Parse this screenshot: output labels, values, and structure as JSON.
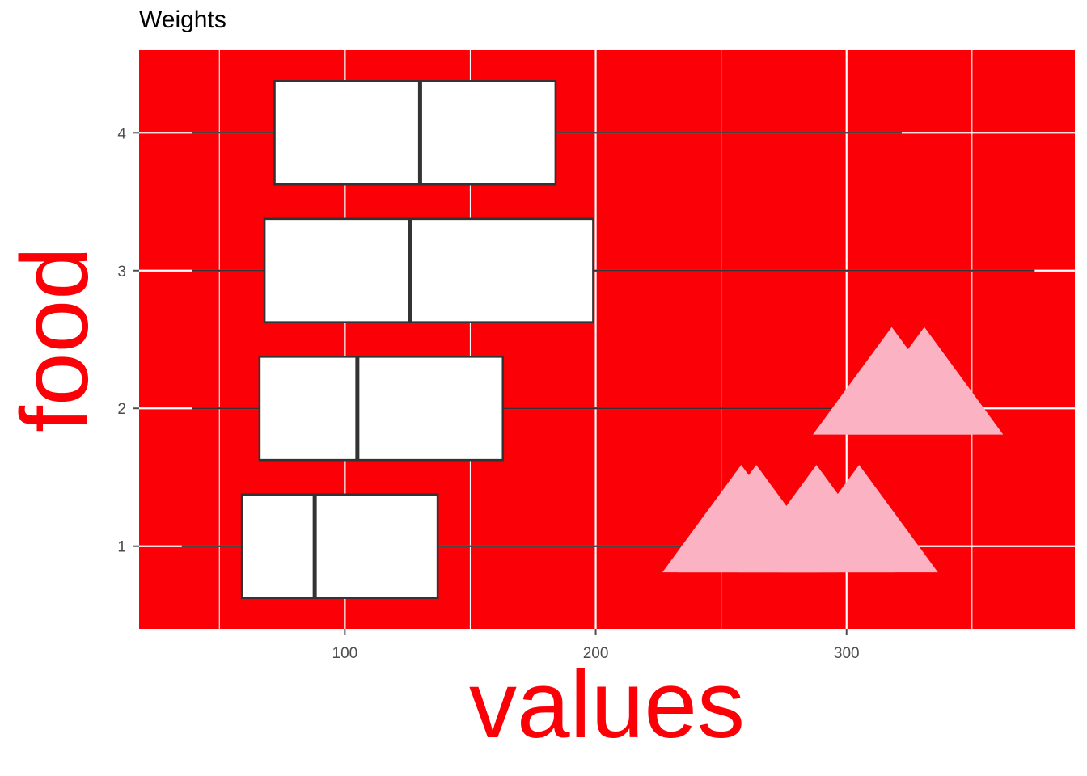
{
  "chart_data": {
    "type": "boxplot",
    "orientation": "horizontal",
    "title": "Weights",
    "xlabel": "values",
    "ylabel": "food",
    "xlim": [
      18,
      391
    ],
    "ylim": [
      0.4,
      4.6
    ],
    "x_ticks": [
      100,
      200,
      300
    ],
    "x_minor_ticks": [
      50,
      150,
      250,
      350
    ],
    "y_ticks": [
      1,
      2,
      3,
      4
    ],
    "categories": [
      "1",
      "2",
      "3",
      "4"
    ],
    "boxes": [
      {
        "category": "1",
        "whisker_low": 35,
        "q1": 59,
        "median": 88,
        "q3": 137,
        "whisker_high": 250
      },
      {
        "category": "2",
        "whisker_low": 39,
        "q1": 66,
        "median": 105,
        "q3": 163,
        "whisker_high": 309
      },
      {
        "category": "3",
        "whisker_low": 39,
        "q1": 68,
        "median": 126,
        "q3": 199,
        "whisker_high": 375
      },
      {
        "category": "4",
        "whisker_low": 39,
        "q1": 72,
        "median": 130,
        "q3": 184,
        "whisker_high": 322
      }
    ],
    "decorations": [
      {
        "shape": "triangle",
        "x_center": 258,
        "y_center": 1.2
      },
      {
        "shape": "triangle",
        "x_center": 264,
        "y_center": 1.2
      },
      {
        "shape": "triangle",
        "x_center": 288,
        "y_center": 1.2
      },
      {
        "shape": "triangle",
        "x_center": 305,
        "y_center": 1.2
      },
      {
        "shape": "triangle",
        "x_center": 318,
        "y_center": 2.2
      },
      {
        "shape": "triangle",
        "x_center": 331,
        "y_center": 2.2
      }
    ],
    "grid": true,
    "colors": {
      "panel_background": "#fb0006",
      "grid": "#ffffff",
      "box_fill": "#ffffff",
      "box_stroke": "#333333",
      "decoration_fill": "#fbb2c2",
      "axis_title": "#fb0006",
      "tick_label": "#4d4d4d"
    }
  }
}
